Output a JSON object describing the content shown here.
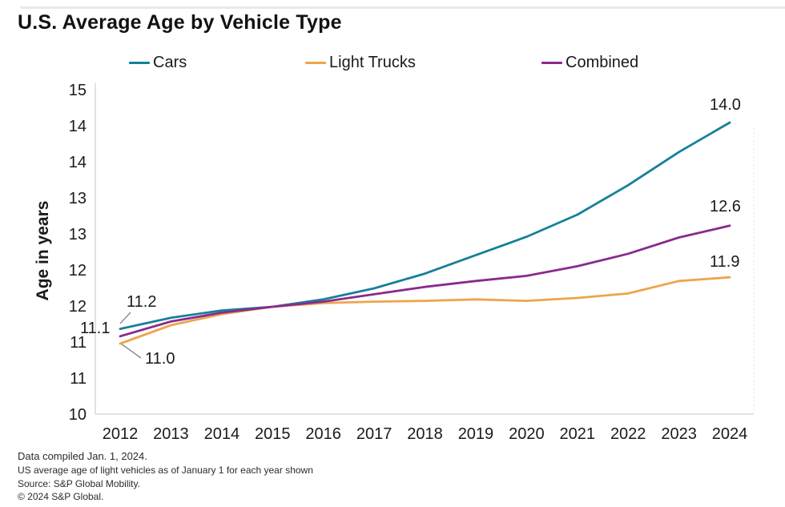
{
  "title": "U.S. Average Age by Vehicle Type",
  "legend": [
    {
      "label": "Cars",
      "color": "#16809a"
    },
    {
      "label": "Light Trucks",
      "color": "#eda54b"
    },
    {
      "label": "Combined",
      "color": "#8a2a8e"
    }
  ],
  "chart_data": {
    "type": "line",
    "title": "U.S. Average Age by Vehicle Type",
    "xlabel": "",
    "ylabel": "Age in years",
    "x": [
      2012,
      2013,
      2014,
      2015,
      2016,
      2017,
      2018,
      2019,
      2020,
      2021,
      2022,
      2023,
      2024
    ],
    "x_tick_labels": [
      "2012",
      "2013",
      "2014",
      "2015",
      "2016",
      "2017",
      "2018",
      "2019",
      "2020",
      "2021",
      "2022",
      "2023",
      "2024"
    ],
    "y_tick_labels": [
      "15",
      "14",
      "14",
      "13",
      "13",
      "12",
      "12",
      "11",
      "11",
      "10"
    ],
    "ylim": [
      10,
      15
    ],
    "grid": false,
    "legend_position": "top",
    "series": [
      {
        "name": "Cars",
        "color": "#16809a",
        "values": [
          11.2,
          11.35,
          11.45,
          11.5,
          11.6,
          11.75,
          11.95,
          12.2,
          12.45,
          12.75,
          13.15,
          13.6,
          14.0
        ]
      },
      {
        "name": "Light Trucks",
        "color": "#eda54b",
        "values": [
          11.0,
          11.25,
          11.4,
          11.5,
          11.55,
          11.57,
          11.58,
          11.6,
          11.58,
          11.62,
          11.68,
          11.85,
          11.9
        ]
      },
      {
        "name": "Combined",
        "color": "#8a2a8e",
        "values": [
          11.1,
          11.3,
          11.42,
          11.5,
          11.57,
          11.67,
          11.77,
          11.85,
          11.92,
          12.05,
          12.22,
          12.44,
          12.6
        ]
      }
    ],
    "annotations": {
      "cars_start": "11.2",
      "combined_start": "11.1",
      "trucks_start": "11.0",
      "cars_end": "14.0",
      "combined_end": "12.6",
      "trucks_end": "11.9"
    }
  },
  "footnotes": [
    "Data compiled Jan. 1, 2024.",
    "US average age of light vehicles as of January 1 for each year shown",
    "Source: S&P Global Mobility.",
    "© 2024 S&P Global."
  ],
  "colors": {
    "axis_line": "#d9d9d9",
    "right_border": "#e4e4e4",
    "callout": "#8c8c8c",
    "text": "#1a1a1a"
  }
}
